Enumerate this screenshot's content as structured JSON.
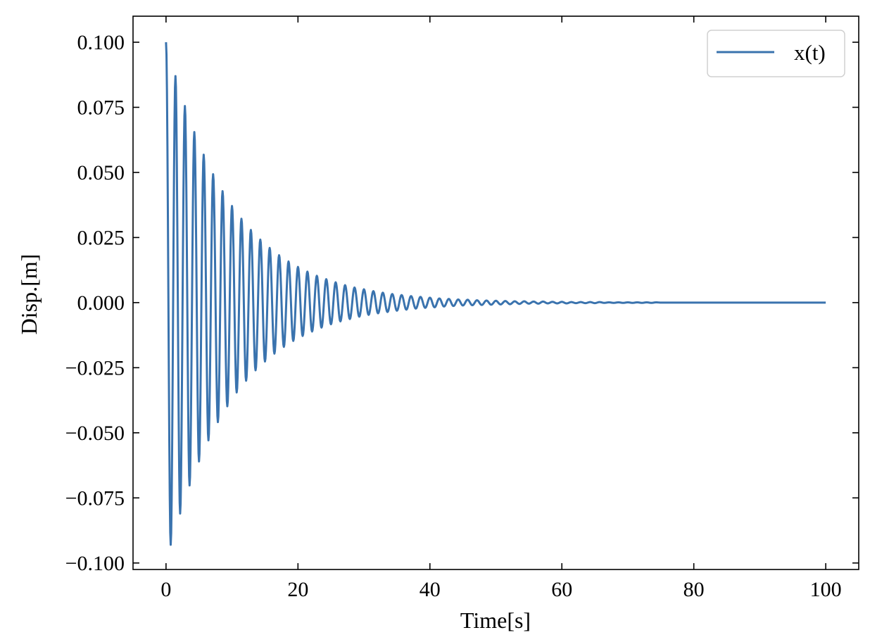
{
  "chart_data": {
    "type": "line",
    "title": "",
    "xlabel": "Time[s]",
    "ylabel": "Disp.[m]",
    "xlim": [
      -5,
      105
    ],
    "ylim": [
      -0.1025,
      0.11
    ],
    "xticks": [
      0,
      20,
      40,
      60,
      80,
      100
    ],
    "xtick_labels": [
      "0",
      "20",
      "40",
      "60",
      "80",
      "100"
    ],
    "yticks": [
      -0.1,
      -0.075,
      -0.05,
      -0.025,
      0.0,
      0.025,
      0.05,
      0.075,
      0.1
    ],
    "ytick_labels": [
      "−0.100",
      "−0.075",
      "−0.050",
      "−0.025",
      "0.000",
      "0.025",
      "0.050",
      "0.075",
      "0.100"
    ],
    "grid": false,
    "legend": {
      "position": "top-right",
      "entries": [
        "x(t)"
      ]
    },
    "colors": {
      "series": "#3a73ae"
    },
    "series": [
      {
        "name": "x(t)",
        "x": [
          0,
          0.71,
          1.43,
          2.14,
          2.86,
          3.57,
          4.29,
          5.0,
          5.71,
          6.43,
          7.14,
          7.86,
          8.57,
          9.29,
          10.0,
          10.71,
          11.43,
          12.14,
          12.86,
          13.57,
          14.29,
          15.0,
          15.71,
          16.43,
          17.14,
          17.86,
          18.57,
          19.29,
          20.0,
          20.71,
          21.43,
          22.14,
          22.86,
          23.57,
          24.29,
          25.0,
          25.71,
          26.43,
          27.14,
          27.86,
          28.57,
          29.29,
          30.0,
          30.71,
          31.43,
          32.14,
          32.86,
          33.57,
          34.29,
          35.0,
          35.71,
          36.43,
          37.14,
          37.86,
          38.57,
          39.29,
          40.0,
          40.71,
          41.43,
          42.14,
          42.86,
          43.57,
          44.29,
          45.0,
          45.71,
          46.43,
          47.14,
          47.86,
          48.57,
          49.29,
          50.0,
          50.71,
          51.43,
          52.14,
          52.86,
          53.57,
          54.29,
          55.0,
          55.71,
          56.43,
          57.14,
          57.86,
          58.57,
          59.29,
          60.0,
          60.71,
          61.43,
          62.14,
          62.86,
          63.57,
          64.29,
          65.0,
          65.71,
          66.43,
          67.14,
          67.86,
          68.57,
          69.29,
          70.0,
          70.71,
          71.43,
          72.14,
          72.86,
          73.57,
          74.29,
          75.0,
          80.0,
          90.0,
          100.0
        ],
        "y": [
          0.1,
          -0.093,
          0.087,
          -0.081,
          0.0755,
          -0.0702,
          0.0655,
          -0.061,
          0.0568,
          -0.0529,
          0.0493,
          -0.0459,
          0.0428,
          -0.0398,
          0.0371,
          -0.0345,
          0.0322,
          -0.03,
          0.0279,
          -0.026,
          0.0242,
          -0.0226,
          0.021,
          -0.0196,
          0.0182,
          -0.017,
          0.0158,
          -0.0147,
          0.0137,
          -0.0128,
          0.0119,
          -0.0111,
          0.0103,
          -0.0096,
          0.009,
          -0.0083,
          0.0078,
          -0.0072,
          0.0067,
          -0.0063,
          0.0058,
          -0.0054,
          0.0051,
          -0.0047,
          0.0044,
          -0.0041,
          0.0038,
          -0.0036,
          0.0033,
          -0.0031,
          0.0029,
          -0.0027,
          0.0025,
          -0.0023,
          0.0022,
          -0.002,
          0.0019,
          -0.0018,
          0.0016,
          -0.0015,
          0.0014,
          -0.0013,
          0.0012,
          -0.0011,
          0.0011,
          -0.001,
          0.0009,
          -0.0009,
          0.0008,
          -0.0008,
          0.0007,
          -0.0007,
          0.0006,
          -0.0006,
          0.0005,
          -0.0005,
          0.0005,
          -0.0004,
          0.0004,
          -0.0004,
          0.0004,
          -0.0003,
          0.0003,
          -0.0003,
          0.0003,
          -0.0003,
          0.0002,
          -0.0002,
          0.0002,
          -0.0002,
          0.0002,
          -0.0002,
          0.0002,
          -0.0001,
          0.0001,
          -0.0001,
          0.0001,
          -0.0001,
          0.0001,
          -0.0001,
          0.0001,
          -0.0001,
          0.0001,
          -0.0001,
          0.0001,
          0.0,
          0.0,
          0.0,
          0.0
        ]
      }
    ]
  }
}
